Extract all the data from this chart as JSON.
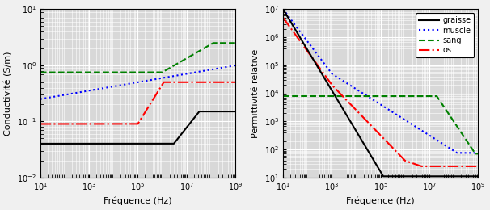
{
  "ylabel_left": "Conductivité (S/m)",
  "ylabel_right": "Permittivité relative",
  "xlabel": "Fréquence (Hz)",
  "xlim": [
    10.0,
    1000000000.0
  ],
  "ylim_left": [
    0.01,
    10.0
  ],
  "ylim_right": [
    10.0,
    10000000.0
  ],
  "legend_labels": [
    "graisse",
    "muscle",
    "sang",
    "os"
  ],
  "background_color": "#d8d8d8",
  "grid_color": "#ffffff",
  "fig_facecolor": "#f0f0f0"
}
